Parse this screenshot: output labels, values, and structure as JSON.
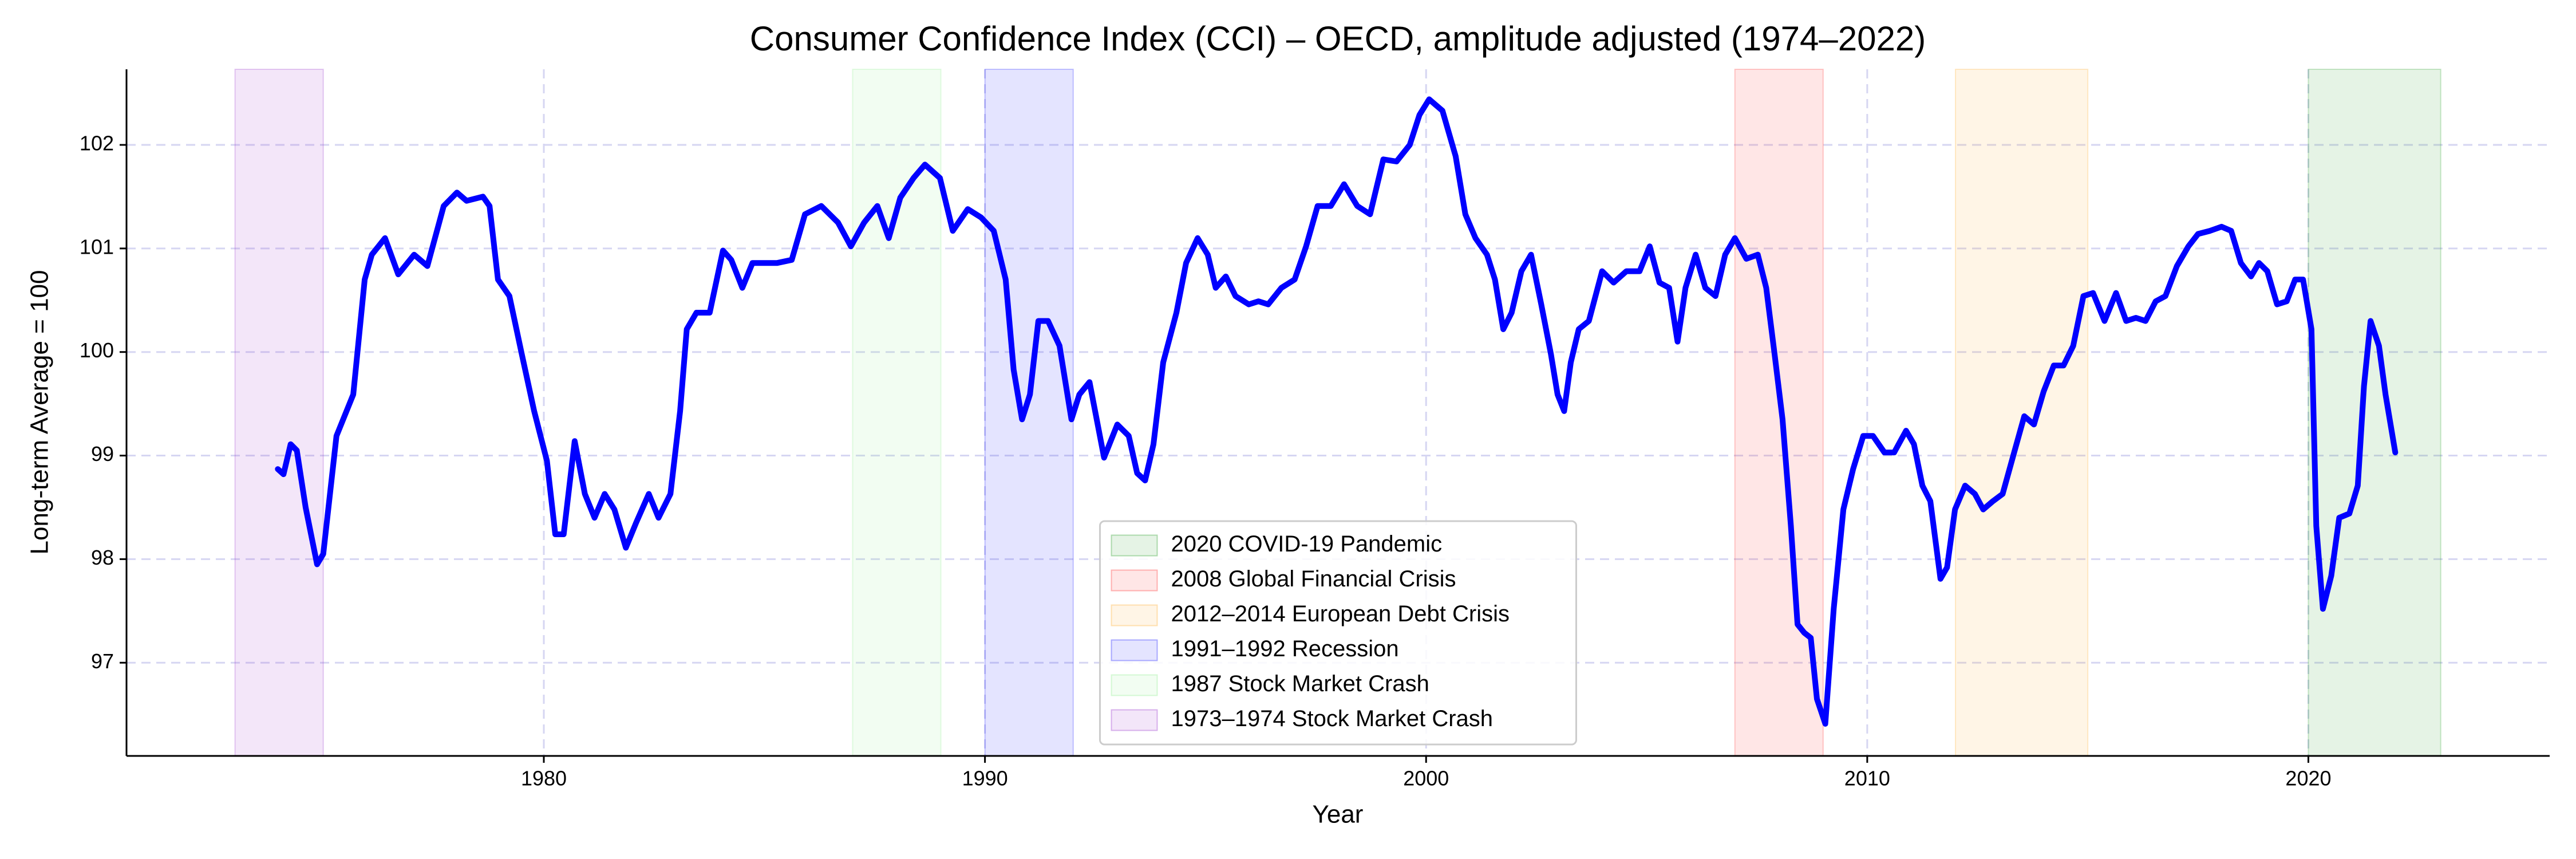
{
  "chart_data": {
    "type": "line",
    "title": "Consumer Confidence Index (CCI) – OECD, amplitude adjusted (1974–2022)",
    "xlabel": "Year",
    "ylabel": "Long-term Average = 100",
    "xlim": [
      1970.54,
      2025.47
    ],
    "ylim": [
      96.1,
      102.73
    ],
    "xticks": [
      1980,
      1990,
      2000,
      2010,
      2020
    ],
    "yticks": [
      97,
      98,
      99,
      100,
      101,
      102
    ],
    "grid": true,
    "legend": "lower center",
    "spans": [
      {
        "label": "2020 COVID-19 Pandemic",
        "start": 2020,
        "end": 2023,
        "color": "#2ca02c"
      },
      {
        "label": "2008 Global Financial Crisis",
        "start": 2007,
        "end": 2009,
        "color": "#ff3333"
      },
      {
        "label": "2012–2014 European Debt Crisis",
        "start": 2012,
        "end": 2015,
        "color": "#ffb030"
      },
      {
        "label": "1991–1992 Recession",
        "start": 1990,
        "end": 1992,
        "color": "#2020ff"
      },
      {
        "label": "1987 Stock Market Crash",
        "start": 1987,
        "end": 1989,
        "color": "#90ee90"
      },
      {
        "label": "1973–1974 Stock Market Crash",
        "start": 1973,
        "end": 1975,
        "color": "#9932cc"
      }
    ],
    "x": [
      1973.97,
      1974.1,
      1974.26,
      1974.4,
      1974.6,
      1974.86,
      1975.0,
      1975.3,
      1975.68,
      1975.94,
      1976.1,
      1976.4,
      1976.7,
      1977.06,
      1977.36,
      1977.73,
      1978.03,
      1978.25,
      1978.62,
      1978.77,
      1978.96,
      1979.22,
      1979.5,
      1979.78,
      1980.07,
      1980.26,
      1980.45,
      1980.7,
      1980.93,
      1981.15,
      1981.38,
      1981.6,
      1981.86,
      1982.09,
      1982.38,
      1982.6,
      1982.87,
      1983.09,
      1983.24,
      1983.46,
      1983.76,
      1984.06,
      1984.25,
      1984.5,
      1984.73,
      1985.03,
      1985.29,
      1985.62,
      1985.92,
      1986.29,
      1986.67,
      1986.96,
      1987.26,
      1987.56,
      1987.82,
      1988.08,
      1988.38,
      1988.64,
      1988.98,
      1989.27,
      1989.61,
      1989.91,
      1990.2,
      1990.47,
      1990.65,
      1990.84,
      1991.02,
      1991.21,
      1991.43,
      1991.69,
      1991.96,
      1992.14,
      1992.37,
      1992.7,
      1993.0,
      1993.26,
      1993.45,
      1993.63,
      1993.82,
      1994.04,
      1994.34,
      1994.56,
      1994.82,
      1995.05,
      1995.23,
      1995.46,
      1995.68,
      1995.98,
      1996.2,
      1996.42,
      1996.72,
      1997.02,
      1997.28,
      1997.54,
      1997.84,
      1998.14,
      1998.44,
      1998.73,
      1999.03,
      1999.33,
      1999.63,
      1999.85,
      2000.07,
      2000.37,
      2000.67,
      2000.89,
      2001.12,
      2001.38,
      2001.56,
      2001.75,
      2001.94,
      2002.16,
      2002.38,
      2002.61,
      2002.83,
      2002.98,
      2003.13,
      2003.28,
      2003.46,
      2003.69,
      2003.99,
      2004.25,
      2004.54,
      2004.84,
      2005.07,
      2005.29,
      2005.51,
      2005.7,
      2005.88,
      2006.11,
      2006.33,
      2006.56,
      2006.78,
      2007.0,
      2007.26,
      2007.52,
      2007.71,
      2007.9,
      2008.08,
      2008.27,
      2008.42,
      2008.57,
      2008.72,
      2008.86,
      2009.05,
      2009.24,
      2009.46,
      2009.68,
      2009.91,
      2010.13,
      2010.39,
      2010.61,
      2010.88,
      2011.06,
      2011.25,
      2011.43,
      2011.66,
      2011.81,
      2011.99,
      2012.22,
      2012.44,
      2012.63,
      2012.85,
      2013.07,
      2013.33,
      2013.56,
      2013.78,
      2014.0,
      2014.23,
      2014.45,
      2014.67,
      2014.9,
      2015.12,
      2015.38,
      2015.64,
      2015.87,
      2016.09,
      2016.31,
      2016.54,
      2016.76,
      2017.02,
      2017.28,
      2017.5,
      2017.77,
      2018.03,
      2018.25,
      2018.47,
      2018.7,
      2018.88,
      2019.07,
      2019.29,
      2019.51,
      2019.7,
      2019.88,
      2020.07,
      2020.18,
      2020.33,
      2020.52,
      2020.7,
      2020.93,
      2021.12,
      2021.26,
      2021.41,
      2021.6,
      2021.75,
      2021.97
    ],
    "series": [
      {
        "color": "#0000ff",
        "values": [
          98.87,
          98.82,
          99.11,
          99.05,
          98.5,
          97.95,
          98.05,
          99.19,
          99.59,
          100.7,
          100.94,
          101.1,
          100.75,
          100.94,
          100.83,
          101.41,
          101.54,
          101.46,
          101.5,
          101.41,
          100.7,
          100.54,
          99.98,
          99.43,
          98.95,
          98.24,
          98.24,
          99.14,
          98.63,
          98.4,
          98.63,
          98.48,
          98.11,
          98.35,
          98.63,
          98.4,
          98.63,
          99.43,
          100.22,
          100.38,
          100.38,
          100.98,
          100.89,
          100.62,
          100.86,
          100.86,
          100.86,
          100.89,
          101.33,
          101.41,
          101.25,
          101.02,
          101.25,
          101.41,
          101.1,
          101.49,
          101.68,
          101.81,
          101.68,
          101.17,
          101.38,
          101.3,
          101.17,
          100.7,
          99.83,
          99.35,
          99.59,
          100.3,
          100.3,
          100.06,
          99.35,
          99.59,
          99.71,
          98.98,
          99.3,
          99.19,
          98.83,
          98.76,
          99.11,
          99.9,
          100.38,
          100.86,
          101.1,
          100.94,
          100.62,
          100.73,
          100.54,
          100.46,
          100.49,
          100.46,
          100.62,
          100.7,
          101.02,
          101.41,
          101.41,
          101.62,
          101.41,
          101.33,
          101.86,
          101.84,
          102.0,
          102.29,
          102.44,
          102.33,
          101.89,
          101.33,
          101.1,
          100.94,
          100.7,
          100.22,
          100.38,
          100.78,
          100.94,
          100.46,
          99.98,
          99.59,
          99.43,
          99.9,
          100.22,
          100.3,
          100.78,
          100.67,
          100.78,
          100.78,
          101.02,
          100.67,
          100.62,
          100.1,
          100.62,
          100.94,
          100.62,
          100.54,
          100.94,
          101.1,
          100.9,
          100.94,
          100.62,
          99.98,
          99.35,
          98.32,
          97.37,
          97.29,
          97.24,
          96.65,
          96.41,
          97.52,
          98.48,
          98.87,
          99.19,
          99.19,
          99.03,
          99.03,
          99.24,
          99.11,
          98.71,
          98.56,
          97.81,
          97.92,
          98.48,
          98.71,
          98.63,
          98.48,
          98.56,
          98.63,
          99.03,
          99.38,
          99.3,
          99.62,
          99.87,
          99.87,
          100.06,
          100.54,
          100.57,
          100.3,
          100.57,
          100.3,
          100.33,
          100.3,
          100.49,
          100.54,
          100.83,
          101.02,
          101.14,
          101.17,
          101.21,
          101.17,
          100.86,
          100.73,
          100.86,
          100.78,
          100.46,
          100.49,
          100.7,
          100.7,
          100.22,
          98.32,
          97.52,
          97.84,
          98.4,
          98.44,
          98.71,
          99.67,
          100.3,
          100.06,
          99.59,
          99.03
        ]
      }
    ]
  }
}
